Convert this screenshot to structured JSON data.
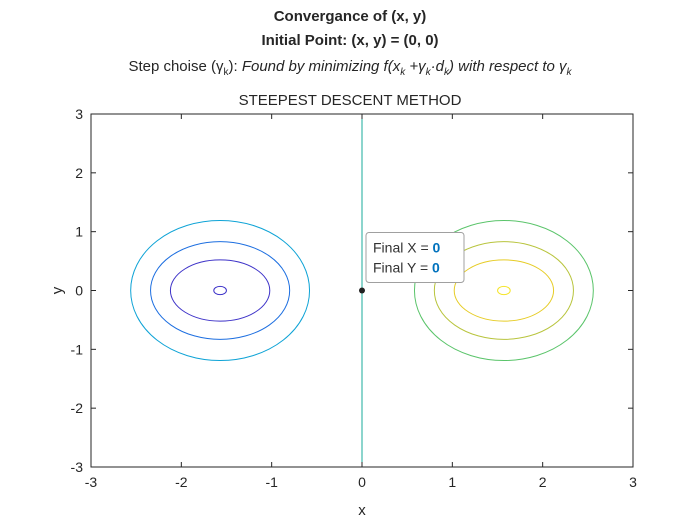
{
  "chart_data": {
    "type": "contour",
    "title": [
      "Convergance of (x, y)",
      "Initial Point: (x, y) = (0, 0)"
    ],
    "subtitle": {
      "prefix": "Step choise (",
      "gamma": "γ",
      "k": "k",
      "mid": "):  ",
      "italic_a": "Found by minimizing f(x",
      "italic_b": " +",
      "dot_d": "·d",
      "italic_c": ") with respect to "
    },
    "axes_title": "STEEPEST DESCENT METHOD",
    "xlabel": "x",
    "ylabel": "y",
    "xlim": [
      -3,
      3
    ],
    "ylim": [
      -3,
      3
    ],
    "xticks": [
      -3,
      -2,
      -1,
      0,
      1,
      2,
      3
    ],
    "yticks": [
      -3,
      -2,
      -1,
      0,
      1,
      2,
      3
    ],
    "grid": false,
    "contours": [
      {
        "center": [
          -1.5708,
          0
        ],
        "rx": 0.07,
        "ry": 0.07,
        "color": "#3d32c8"
      },
      {
        "center": [
          -1.5708,
          0
        ],
        "rx": 0.55,
        "ry": 0.52,
        "color": "#3d32c8"
      },
      {
        "center": [
          -1.5708,
          0
        ],
        "rx": 0.77,
        "ry": 0.83,
        "color": "#1c6ee0"
      },
      {
        "center": [
          -1.5708,
          0
        ],
        "rx": 0.99,
        "ry": 1.19,
        "color": "#0ea3d6"
      },
      {
        "center": [
          1.5708,
          0
        ],
        "rx": 0.07,
        "ry": 0.07,
        "color": "#f5e52a"
      },
      {
        "center": [
          1.5708,
          0
        ],
        "rx": 0.55,
        "ry": 0.52,
        "color": "#e6cc25"
      },
      {
        "center": [
          1.5708,
          0
        ],
        "rx": 0.77,
        "ry": 0.83,
        "color": "#b8c43c"
      },
      {
        "center": [
          1.5708,
          0
        ],
        "rx": 0.99,
        "ry": 1.19,
        "color": "#5ac46a"
      }
    ],
    "zero_contour": {
      "x": 0,
      "color": "#1aab9b"
    },
    "final_point": {
      "x": 0,
      "y": 0
    },
    "datatip": {
      "x_label": "Final X = ",
      "x_value": "0",
      "y_label": "Final Y = ",
      "y_value": "0"
    }
  }
}
